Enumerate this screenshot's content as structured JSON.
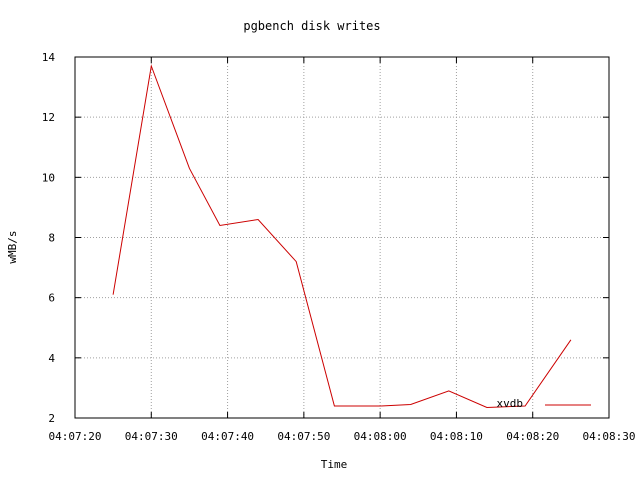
{
  "chart_data": {
    "type": "line",
    "title": "pgbench disk writes",
    "xlabel": "Time",
    "ylabel": "wMB/s",
    "x_ticks": [
      "04:07:20",
      "04:07:30",
      "04:07:40",
      "04:07:50",
      "04:08:00",
      "04:08:10",
      "04:08:20",
      "04:08:30"
    ],
    "y_ticks": [
      "2",
      "4",
      "6",
      "8",
      "10",
      "12",
      "14"
    ],
    "xlim": [
      "04:07:20",
      "04:08:30"
    ],
    "ylim": [
      2,
      14
    ],
    "grid": true,
    "legend_position": "bottom-right",
    "series": [
      {
        "name": "xvdb",
        "color": "#cc0000",
        "x": [
          "04:07:25",
          "04:07:30",
          "04:07:35",
          "04:07:39",
          "04:07:44",
          "04:07:49",
          "04:07:54",
          "04:08:00",
          "04:08:04",
          "04:08:09",
          "04:08:14",
          "04:08:19",
          "04:08:25"
        ],
        "y": [
          6.1,
          13.7,
          10.3,
          8.4,
          8.6,
          7.2,
          2.4,
          2.4,
          2.45,
          2.9,
          2.35,
          2.4,
          4.6
        ]
      }
    ]
  }
}
